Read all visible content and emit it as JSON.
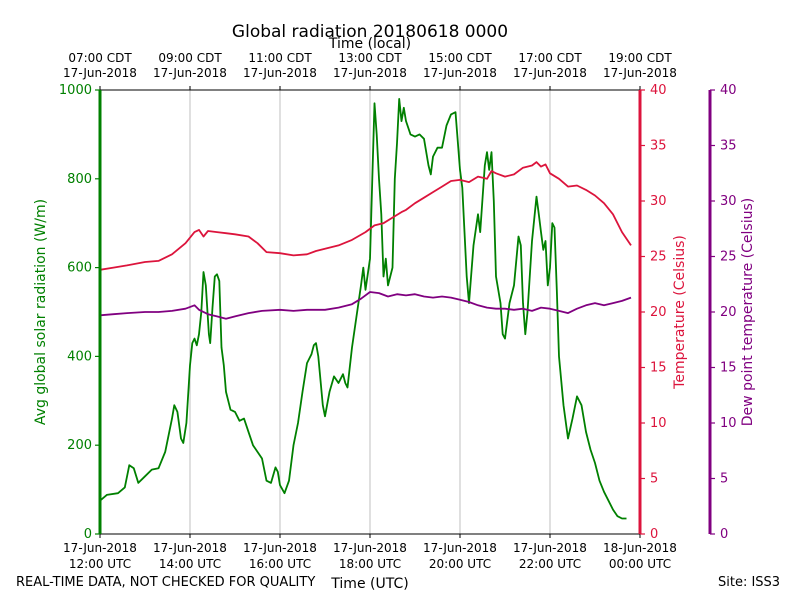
{
  "chart_data": {
    "type": "line",
    "title": "Global radiation 20180618 0000",
    "top_axis_label": "Time (local)",
    "bottom_axis_label": "Time (UTC)",
    "x_range_hours_utc": [
      12,
      24
    ],
    "top_ticks": [
      {
        "hour": 12,
        "line1": "07:00 CDT",
        "line2": "17-Jun-2018"
      },
      {
        "hour": 14,
        "line1": "09:00 CDT",
        "line2": "17-Jun-2018"
      },
      {
        "hour": 16,
        "line1": "11:00 CDT",
        "line2": "17-Jun-2018"
      },
      {
        "hour": 18,
        "line1": "13:00 CDT",
        "line2": "17-Jun-2018"
      },
      {
        "hour": 20,
        "line1": "15:00 CDT",
        "line2": "17-Jun-2018"
      },
      {
        "hour": 22,
        "line1": "17:00 CDT",
        "line2": "17-Jun-2018"
      },
      {
        "hour": 24,
        "line1": "19:00 CDT",
        "line2": "17-Jun-2018"
      }
    ],
    "bottom_ticks": [
      {
        "hour": 12,
        "line1": "17-Jun-2018",
        "line2": "12:00 UTC"
      },
      {
        "hour": 14,
        "line1": "17-Jun-2018",
        "line2": "14:00 UTC"
      },
      {
        "hour": 16,
        "line1": "17-Jun-2018",
        "line2": "16:00 UTC"
      },
      {
        "hour": 18,
        "line1": "17-Jun-2018",
        "line2": "18:00 UTC"
      },
      {
        "hour": 20,
        "line1": "17-Jun-2018",
        "line2": "20:00 UTC"
      },
      {
        "hour": 22,
        "line1": "17-Jun-2018",
        "line2": "22:00 UTC"
      },
      {
        "hour": 24,
        "line1": "18-Jun-2018",
        "line2": "00:00 UTC"
      }
    ],
    "axes": {
      "left": {
        "label": "Avg global solar radiation (W/m)",
        "range": [
          0,
          1000
        ],
        "ticks": [
          0,
          200,
          400,
          600,
          800,
          1000
        ],
        "color": "#008000"
      },
      "right": {
        "label": "Temperature (Celsius)",
        "range": [
          0,
          40
        ],
        "ticks": [
          0,
          5,
          10,
          15,
          20,
          25,
          30,
          35,
          40
        ],
        "color": "#dc143c"
      },
      "right2": {
        "label": "Dew point temperature (Celsius)",
        "range": [
          0,
          40
        ],
        "ticks": [
          0,
          5,
          10,
          15,
          20,
          25,
          30,
          35,
          40
        ],
        "color": "#800080"
      }
    },
    "series": [
      {
        "name": "Avg global solar radiation",
        "axis": "left",
        "color": "#008000",
        "points": [
          [
            12.0,
            75
          ],
          [
            12.15,
            88
          ],
          [
            12.4,
            92
          ],
          [
            12.55,
            105
          ],
          [
            12.65,
            155
          ],
          [
            12.75,
            148
          ],
          [
            12.85,
            115
          ],
          [
            13.0,
            130
          ],
          [
            13.15,
            145
          ],
          [
            13.3,
            148
          ],
          [
            13.45,
            185
          ],
          [
            13.6,
            260
          ],
          [
            13.65,
            290
          ],
          [
            13.72,
            275
          ],
          [
            13.8,
            215
          ],
          [
            13.85,
            205
          ],
          [
            13.92,
            250
          ],
          [
            14.0,
            380
          ],
          [
            14.05,
            430
          ],
          [
            14.1,
            440
          ],
          [
            14.15,
            425
          ],
          [
            14.2,
            450
          ],
          [
            14.25,
            500
          ],
          [
            14.3,
            590
          ],
          [
            14.35,
            560
          ],
          [
            14.42,
            450
          ],
          [
            14.45,
            430
          ],
          [
            14.5,
            510
          ],
          [
            14.55,
            580
          ],
          [
            14.6,
            585
          ],
          [
            14.65,
            570
          ],
          [
            14.7,
            420
          ],
          [
            14.75,
            380
          ],
          [
            14.8,
            320
          ],
          [
            14.9,
            280
          ],
          [
            15.0,
            275
          ],
          [
            15.1,
            255
          ],
          [
            15.2,
            260
          ],
          [
            15.3,
            230
          ],
          [
            15.4,
            200
          ],
          [
            15.5,
            185
          ],
          [
            15.6,
            170
          ],
          [
            15.7,
            120
          ],
          [
            15.8,
            115
          ],
          [
            15.9,
            150
          ],
          [
            15.95,
            140
          ],
          [
            16.0,
            110
          ],
          [
            16.1,
            92
          ],
          [
            16.2,
            120
          ],
          [
            16.3,
            200
          ],
          [
            16.4,
            250
          ],
          [
            16.5,
            320
          ],
          [
            16.6,
            385
          ],
          [
            16.7,
            405
          ],
          [
            16.75,
            425
          ],
          [
            16.8,
            430
          ],
          [
            16.85,
            400
          ],
          [
            16.95,
            290
          ],
          [
            17.0,
            265
          ],
          [
            17.1,
            320
          ],
          [
            17.2,
            355
          ],
          [
            17.3,
            340
          ],
          [
            17.4,
            360
          ],
          [
            17.45,
            340
          ],
          [
            17.5,
            330
          ],
          [
            17.6,
            420
          ],
          [
            17.7,
            490
          ],
          [
            17.8,
            560
          ],
          [
            17.85,
            600
          ],
          [
            17.9,
            550
          ],
          [
            18.0,
            620
          ],
          [
            18.05,
            800
          ],
          [
            18.1,
            970
          ],
          [
            18.15,
            900
          ],
          [
            18.2,
            800
          ],
          [
            18.25,
            720
          ],
          [
            18.3,
            580
          ],
          [
            18.35,
            620
          ],
          [
            18.4,
            560
          ],
          [
            18.5,
            600
          ],
          [
            18.55,
            800
          ],
          [
            18.6,
            880
          ],
          [
            18.65,
            980
          ],
          [
            18.7,
            930
          ],
          [
            18.75,
            960
          ],
          [
            18.8,
            930
          ],
          [
            18.9,
            900
          ],
          [
            19.0,
            895
          ],
          [
            19.1,
            900
          ],
          [
            19.2,
            890
          ],
          [
            19.3,
            830
          ],
          [
            19.35,
            810
          ],
          [
            19.4,
            850
          ],
          [
            19.5,
            870
          ],
          [
            19.6,
            870
          ],
          [
            19.7,
            920
          ],
          [
            19.8,
            945
          ],
          [
            19.9,
            950
          ],
          [
            20.0,
            820
          ],
          [
            20.05,
            780
          ],
          [
            20.1,
            680
          ],
          [
            20.15,
            580
          ],
          [
            20.2,
            520
          ],
          [
            20.3,
            650
          ],
          [
            20.4,
            720
          ],
          [
            20.45,
            680
          ],
          [
            20.55,
            830
          ],
          [
            20.6,
            860
          ],
          [
            20.65,
            820
          ],
          [
            20.7,
            860
          ],
          [
            20.75,
            750
          ],
          [
            20.8,
            580
          ],
          [
            20.9,
            520
          ],
          [
            20.95,
            450
          ],
          [
            21.0,
            440
          ],
          [
            21.1,
            520
          ],
          [
            21.2,
            560
          ],
          [
            21.3,
            670
          ],
          [
            21.35,
            650
          ],
          [
            21.4,
            520
          ],
          [
            21.45,
            450
          ],
          [
            21.5,
            500
          ],
          [
            21.6,
            660
          ],
          [
            21.7,
            760
          ],
          [
            21.75,
            720
          ],
          [
            21.8,
            680
          ],
          [
            21.85,
            640
          ],
          [
            21.9,
            660
          ],
          [
            21.95,
            560
          ],
          [
            22.0,
            600
          ],
          [
            22.05,
            700
          ],
          [
            22.1,
            690
          ],
          [
            22.15,
            550
          ],
          [
            22.2,
            400
          ],
          [
            22.3,
            290
          ],
          [
            22.4,
            215
          ],
          [
            22.5,
            260
          ],
          [
            22.6,
            310
          ],
          [
            22.7,
            290
          ],
          [
            22.8,
            230
          ],
          [
            22.9,
            190
          ],
          [
            23.0,
            160
          ],
          [
            23.1,
            120
          ],
          [
            23.2,
            95
          ],
          [
            23.3,
            75
          ],
          [
            23.4,
            55
          ],
          [
            23.5,
            40
          ],
          [
            23.6,
            35
          ],
          [
            23.7,
            35
          ]
        ]
      },
      {
        "name": "Temperature",
        "axis": "right",
        "color": "#dc143c",
        "points": [
          [
            12.0,
            23.8
          ],
          [
            12.3,
            24.0
          ],
          [
            12.6,
            24.2
          ],
          [
            13.0,
            24.5
          ],
          [
            13.3,
            24.6
          ],
          [
            13.6,
            25.2
          ],
          [
            13.9,
            26.2
          ],
          [
            14.1,
            27.2
          ],
          [
            14.2,
            27.4
          ],
          [
            14.3,
            26.8
          ],
          [
            14.4,
            27.3
          ],
          [
            14.6,
            27.2
          ],
          [
            14.8,
            27.1
          ],
          [
            15.0,
            27.0
          ],
          [
            15.3,
            26.8
          ],
          [
            15.5,
            26.2
          ],
          [
            15.7,
            25.4
          ],
          [
            16.0,
            25.3
          ],
          [
            16.3,
            25.1
          ],
          [
            16.6,
            25.2
          ],
          [
            16.8,
            25.5
          ],
          [
            17.0,
            25.7
          ],
          [
            17.3,
            26.0
          ],
          [
            17.6,
            26.5
          ],
          [
            17.9,
            27.2
          ],
          [
            18.1,
            27.8
          ],
          [
            18.3,
            28.0
          ],
          [
            18.5,
            28.5
          ],
          [
            18.7,
            29.0
          ],
          [
            18.8,
            29.2
          ],
          [
            19.0,
            29.8
          ],
          [
            19.2,
            30.3
          ],
          [
            19.4,
            30.8
          ],
          [
            19.6,
            31.3
          ],
          [
            19.8,
            31.8
          ],
          [
            20.0,
            31.9
          ],
          [
            20.2,
            31.7
          ],
          [
            20.4,
            32.2
          ],
          [
            20.6,
            32.0
          ],
          [
            20.7,
            32.7
          ],
          [
            20.8,
            32.5
          ],
          [
            21.0,
            32.2
          ],
          [
            21.2,
            32.4
          ],
          [
            21.4,
            33.0
          ],
          [
            21.6,
            33.2
          ],
          [
            21.7,
            33.5
          ],
          [
            21.8,
            33.1
          ],
          [
            21.9,
            33.3
          ],
          [
            22.0,
            32.5
          ],
          [
            22.2,
            32.0
          ],
          [
            22.4,
            31.3
          ],
          [
            22.6,
            31.4
          ],
          [
            22.8,
            31.0
          ],
          [
            23.0,
            30.5
          ],
          [
            23.2,
            29.8
          ],
          [
            23.4,
            28.8
          ],
          [
            23.6,
            27.2
          ],
          [
            23.8,
            26.0
          ]
        ]
      },
      {
        "name": "Dew point temperature",
        "axis": "right2",
        "color": "#800080",
        "points": [
          [
            12.0,
            19.7
          ],
          [
            12.3,
            19.8
          ],
          [
            12.6,
            19.9
          ],
          [
            13.0,
            20.0
          ],
          [
            13.3,
            20.0
          ],
          [
            13.6,
            20.1
          ],
          [
            13.9,
            20.3
          ],
          [
            14.1,
            20.6
          ],
          [
            14.2,
            20.2
          ],
          [
            14.4,
            19.8
          ],
          [
            14.6,
            19.6
          ],
          [
            14.8,
            19.4
          ],
          [
            15.0,
            19.6
          ],
          [
            15.3,
            19.9
          ],
          [
            15.6,
            20.1
          ],
          [
            16.0,
            20.2
          ],
          [
            16.3,
            20.1
          ],
          [
            16.6,
            20.2
          ],
          [
            17.0,
            20.2
          ],
          [
            17.3,
            20.4
          ],
          [
            17.6,
            20.7
          ],
          [
            17.8,
            21.2
          ],
          [
            18.0,
            21.8
          ],
          [
            18.2,
            21.7
          ],
          [
            18.4,
            21.4
          ],
          [
            18.6,
            21.6
          ],
          [
            18.8,
            21.5
          ],
          [
            19.0,
            21.6
          ],
          [
            19.2,
            21.4
          ],
          [
            19.4,
            21.3
          ],
          [
            19.6,
            21.4
          ],
          [
            19.8,
            21.3
          ],
          [
            20.0,
            21.1
          ],
          [
            20.2,
            20.9
          ],
          [
            20.4,
            20.6
          ],
          [
            20.6,
            20.4
          ],
          [
            20.8,
            20.3
          ],
          [
            21.0,
            20.3
          ],
          [
            21.2,
            20.2
          ],
          [
            21.4,
            20.3
          ],
          [
            21.6,
            20.1
          ],
          [
            21.8,
            20.4
          ],
          [
            22.0,
            20.3
          ],
          [
            22.2,
            20.1
          ],
          [
            22.4,
            19.9
          ],
          [
            22.6,
            20.3
          ],
          [
            22.8,
            20.6
          ],
          [
            23.0,
            20.8
          ],
          [
            23.2,
            20.6
          ],
          [
            23.4,
            20.8
          ],
          [
            23.6,
            21.0
          ],
          [
            23.8,
            21.3
          ]
        ]
      }
    ]
  },
  "footer": {
    "disclaimer": "REAL-TIME DATA, NOT CHECKED FOR QUALITY",
    "site": "Site: ISS3"
  }
}
